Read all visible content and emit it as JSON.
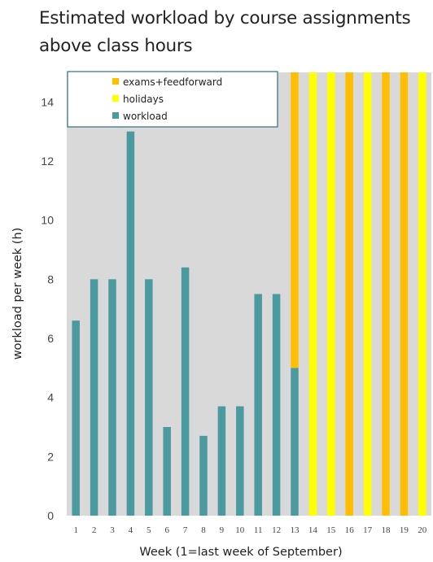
{
  "chart_data": {
    "type": "bar",
    "stacked": true,
    "title": "Estimated workload by course assignments above class hours",
    "xlabel": "Week (1=last week of September)",
    "ylabel": "workload per week (h)",
    "ylim": [
      0,
      15
    ],
    "yticks": [
      0,
      2,
      4,
      6,
      8,
      10,
      12,
      14
    ],
    "categories": [
      "1",
      "2",
      "3",
      "4",
      "5",
      "6",
      "7",
      "8",
      "9",
      "10",
      "11",
      "12",
      "13",
      "14",
      "15",
      "16",
      "17",
      "18",
      "19",
      "20"
    ],
    "series": [
      {
        "name": "workload",
        "color": "#4a9aa0",
        "values": [
          6.6,
          8,
          8,
          13,
          8,
          3,
          8.4,
          2.7,
          3.7,
          3.7,
          7.5,
          7.5,
          5,
          0,
          0,
          0,
          0,
          0,
          0,
          0
        ]
      },
      {
        "name": "holidays",
        "color": "#ffff00",
        "values": [
          0,
          0,
          0,
          0,
          0,
          0,
          0,
          0,
          0,
          0,
          0,
          0,
          0,
          15,
          15,
          0,
          15,
          0,
          0,
          15
        ]
      },
      {
        "name": "exams+feedforward",
        "color": "#ffbf00",
        "values": [
          0,
          0,
          0,
          0,
          0,
          0,
          0,
          0,
          0,
          0,
          0,
          0,
          10,
          0,
          0,
          15,
          0,
          15,
          15,
          0
        ]
      }
    ],
    "legend": {
      "placement": "top-left",
      "order": [
        "exams+feedforward",
        "holidays",
        "workload"
      ]
    },
    "background": "#d9d9d9",
    "grid": false
  }
}
